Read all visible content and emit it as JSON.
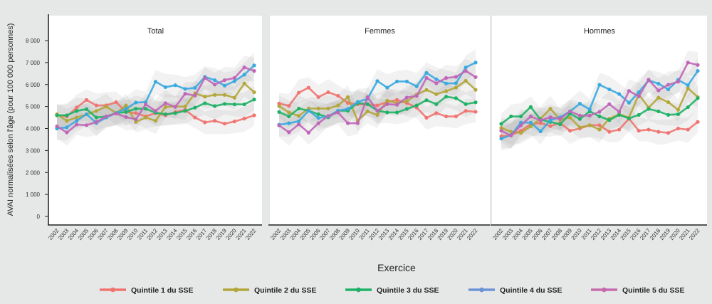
{
  "chart_data": [
    {
      "type": "line",
      "title": "Total",
      "categories": [
        "2002",
        "2003",
        "2004",
        "2005",
        "2006",
        "2007",
        "2008",
        "2009",
        "2010",
        "2011",
        "2012",
        "2013",
        "2014",
        "2015",
        "2016",
        "2017",
        "2018",
        "2019",
        "2020",
        "2021",
        "2022"
      ],
      "series": [
        {
          "name": "Quintile 1 du SSE",
          "color": "#f07470",
          "values": [
            4600,
            4550,
            4950,
            5300,
            5050,
            5050,
            5200,
            4750,
            4700,
            4550,
            4700,
            4600,
            4750,
            4850,
            4500,
            4280,
            4350,
            4220,
            4320,
            4450,
            4600
          ]
        },
        {
          "name": "Quintile 2 du SSE",
          "color": "#b3a63a",
          "values": [
            4650,
            4350,
            4500,
            4650,
            4800,
            5000,
            4700,
            5050,
            4300,
            4500,
            4350,
            4980,
            5000,
            5000,
            5600,
            5450,
            5530,
            5530,
            5400,
            6050,
            5650
          ]
        },
        {
          "name": "Quintile 3 du SSE",
          "color": "#1fb266",
          "values": [
            4600,
            4600,
            4800,
            4880,
            4500,
            4550,
            4700,
            4750,
            4900,
            4900,
            4720,
            4650,
            4700,
            4800,
            4950,
            5150,
            5020,
            5120,
            5100,
            5100,
            5320
          ]
        },
        {
          "name": "Quintile 4 du SSE",
          "color": "#3aa9e0",
          "values": [
            4000,
            4050,
            4350,
            4650,
            4250,
            4500,
            4700,
            4900,
            5180,
            5200,
            6130,
            5880,
            5970,
            5800,
            5850,
            6350,
            6200,
            5950,
            6150,
            6450,
            6870
          ]
        },
        {
          "name": "Quintile 5 du SSE",
          "color": "#c066b8",
          "values": [
            4100,
            3820,
            4180,
            4150,
            4300,
            4550,
            4680,
            4520,
            4420,
            5100,
            4800,
            5150,
            4980,
            5580,
            5500,
            6300,
            6000,
            6200,
            6300,
            6780,
            6620
          ]
        }
      ],
      "ylabel": "AVAI normalisées selon l'âge (pour 100 000 personnes)",
      "xlabel": "Exercice",
      "ylim": [
        0,
        8000
      ],
      "yticks": [
        "0",
        "1 000",
        "2 000",
        "3 000",
        "4 000",
        "5 000",
        "6 000",
        "7 000",
        "8 000"
      ],
      "confidence_bands": true,
      "grid": false
    },
    {
      "type": "line",
      "title": "Femmes",
      "categories": [
        "2002",
        "2003",
        "2004",
        "2005",
        "2006",
        "2007",
        "2008",
        "2009",
        "2010",
        "2011",
        "2012",
        "2013",
        "2014",
        "2015",
        "2016",
        "2017",
        "2018",
        "2019",
        "2020",
        "2021",
        "2022"
      ],
      "series": [
        {
          "name": "Quintile 1 du SSE",
          "color": "#f07470",
          "values": [
            5140,
            5030,
            5630,
            5860,
            5430,
            5650,
            5490,
            5160,
            5100,
            5100,
            5050,
            5210,
            5300,
            5160,
            4950,
            4490,
            4700,
            4550,
            4550,
            4800,
            4760
          ]
        },
        {
          "name": "Quintile 2 du SSE",
          "color": "#b3a63a",
          "values": [
            5020,
            4730,
            4570,
            4910,
            4910,
            4910,
            5050,
            5430,
            4350,
            4780,
            4620,
            5270,
            5160,
            5240,
            5540,
            5760,
            5560,
            5700,
            5860,
            6170,
            5760
          ]
        },
        {
          "name": "Quintile 3 du SSE",
          "color": "#1fb266",
          "values": [
            4750,
            4550,
            4910,
            4810,
            4650,
            4510,
            4810,
            4810,
            5160,
            5110,
            4810,
            4730,
            4730,
            4890,
            5050,
            5290,
            5110,
            5450,
            5380,
            5110,
            5190
          ]
        },
        {
          "name": "Quintile 4 du SSE",
          "color": "#3aa9e0",
          "values": [
            4170,
            4240,
            4330,
            4810,
            4480,
            4550,
            4810,
            4890,
            5210,
            5350,
            6160,
            5860,
            6140,
            6140,
            5920,
            6530,
            6240,
            6050,
            6060,
            6780,
            7000
          ]
        },
        {
          "name": "Quintile 5 du SSE",
          "color": "#c066b8",
          "values": [
            4140,
            3830,
            4190,
            3810,
            4240,
            4570,
            4730,
            4240,
            4240,
            5430,
            4810,
            5110,
            5080,
            5410,
            5480,
            6300,
            6060,
            6300,
            6350,
            6620,
            6340
          ]
        }
      ],
      "ylim": [
        0,
        8000
      ],
      "confidence_bands": true,
      "grid": false
    },
    {
      "type": "line",
      "title": "Hommes",
      "categories": [
        "2002",
        "2003",
        "2004",
        "2005",
        "2006",
        "2007",
        "2008",
        "2009",
        "2010",
        "2011",
        "2012",
        "2013",
        "2014",
        "2015",
        "2016",
        "2017",
        "2018",
        "2019",
        "2020",
        "2021",
        "2022"
      ],
      "series": [
        {
          "name": "Quintile 1 du SSE",
          "color": "#f07470",
          "values": [
            3650,
            3700,
            3900,
            4200,
            4250,
            4110,
            4250,
            3900,
            4000,
            4150,
            4150,
            3850,
            3950,
            4450,
            3900,
            3950,
            3850,
            3800,
            4000,
            3950,
            4300
          ]
        },
        {
          "name": "Quintile 2 du SSE",
          "color": "#b3a63a",
          "values": [
            4030,
            3850,
            3800,
            4100,
            4450,
            4900,
            4400,
            4500,
            4050,
            4150,
            3950,
            4450,
            4650,
            4500,
            5550,
            4950,
            5400,
            5200,
            4850,
            5830,
            5430
          ]
        },
        {
          "name": "Quintile 3 du SSE",
          "color": "#1fb266",
          "values": [
            4210,
            4550,
            4550,
            4980,
            4400,
            4300,
            4190,
            4680,
            4430,
            4780,
            4550,
            4380,
            4620,
            4460,
            4620,
            4890,
            4780,
            4620,
            4650,
            4970,
            5380
          ]
        },
        {
          "name": "Quintile 4 du SSE",
          "color": "#3aa9e0",
          "values": [
            3540,
            3700,
            4270,
            4270,
            3870,
            4380,
            4510,
            4780,
            5130,
            4870,
            5990,
            5780,
            5570,
            5170,
            5650,
            6190,
            6040,
            5780,
            6210,
            5970,
            6620
          ]
        },
        {
          "name": "Quintile 5 du SSE",
          "color": "#c066b8",
          "values": [
            3900,
            3680,
            4140,
            4550,
            4370,
            4510,
            4440,
            4780,
            4590,
            4590,
            4760,
            5110,
            4760,
            5710,
            5460,
            6220,
            5730,
            5990,
            6130,
            7000,
            6890
          ]
        }
      ],
      "ylim": [
        0,
        8000
      ],
      "confidence_bands": true,
      "grid": false
    }
  ],
  "axis": {
    "xlabel": "Exercice",
    "ylabel": "AVAI normalisées selon l'âge (pour 100 000 personnes)"
  },
  "legend": {
    "placement": "bottom",
    "items": [
      {
        "label": "Quintile 1 du SSE",
        "color": "#f07470"
      },
      {
        "label": "Quintile 2 du SSE",
        "color": "#b3a63a"
      },
      {
        "label": "Quintile 3 du SSE",
        "color": "#1fb266"
      },
      {
        "label": "Quintile 4 du SSE",
        "color": "#6b94d6"
      },
      {
        "label": "Quintile 5 du SSE",
        "color": "#c66aae"
      }
    ]
  }
}
